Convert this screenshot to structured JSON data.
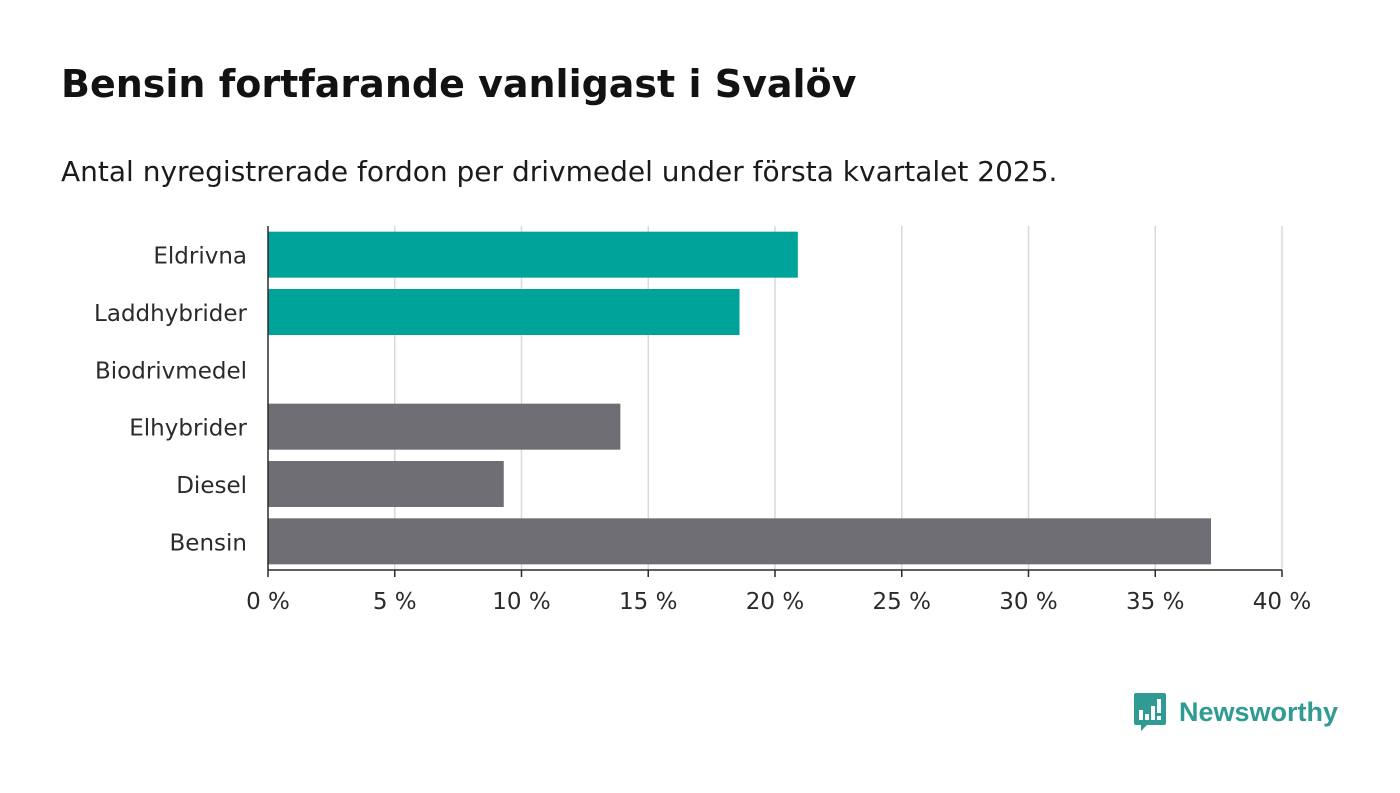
{
  "header": {
    "title": "Bensin fortfarande vanligast i Svalöv",
    "subtitle": "Antal nyregistrerade fordon per drivmedel under första kvartalet 2025."
  },
  "chart_data": {
    "type": "bar",
    "orientation": "horizontal",
    "categories": [
      "Eldrivna",
      "Laddhybrider",
      "Biodrivmedel",
      "Elhybrider",
      "Diesel",
      "Bensin"
    ],
    "values": [
      20.9,
      18.6,
      0,
      13.9,
      9.3,
      37.2
    ],
    "colors": [
      "#00a39a",
      "#00a39a",
      "#6f6e75",
      "#6f6e75",
      "#6f6e75",
      "#6f6e75"
    ],
    "xlim": [
      0,
      40
    ],
    "xticks": [
      0,
      5,
      10,
      15,
      20,
      25,
      30,
      35,
      40
    ],
    "xtick_labels": [
      "0 %",
      "5 %",
      "10 %",
      "15 %",
      "20 %",
      "25 %",
      "30 %",
      "35 %",
      "40 %"
    ],
    "xlabel": "",
    "ylabel": "",
    "grid": "vertical"
  },
  "brand": {
    "name": "Newsworthy",
    "color": "#2f9b93"
  }
}
